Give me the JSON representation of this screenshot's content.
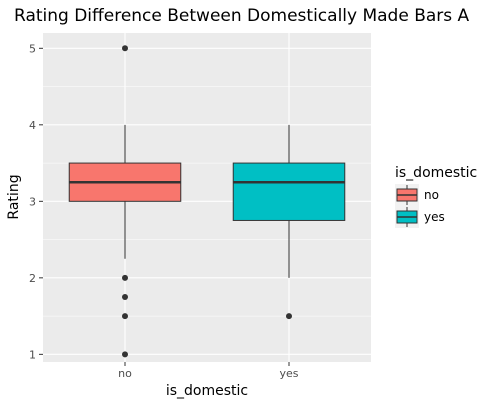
{
  "chart_data": {
    "type": "boxplot",
    "title": "Rating Difference Between Domestically Made Bars A",
    "xlabel": "is_domestic",
    "ylabel": "Rating",
    "categories": [
      "no",
      "yes"
    ],
    "ylim": [
      0.9,
      5.2
    ],
    "yticks": [
      "1",
      "2",
      "3",
      "4",
      "5"
    ],
    "grid": true,
    "legend": {
      "title": "is_domestic",
      "position": "right",
      "entries": [
        {
          "label": "no",
          "color": "#F8766D"
        },
        {
          "label": "yes",
          "color": "#00BFC4"
        }
      ]
    },
    "boxes": [
      {
        "category": "no",
        "whisker_low": 2.25,
        "q1": 3.0,
        "median": 3.25,
        "q3": 3.5,
        "whisker_high": 4.0,
        "outliers": [
          5.0,
          2.0,
          1.75,
          1.5,
          1.0
        ],
        "color": "#F8766D"
      },
      {
        "category": "yes",
        "whisker_low": 2.0,
        "q1": 2.75,
        "median": 3.25,
        "q3": 3.5,
        "whisker_high": 4.0,
        "outliers": [
          1.5
        ],
        "color": "#00BFC4"
      }
    ]
  },
  "colors": {
    "panel_background": "#EBEBEB",
    "grid_major": "#FFFFFF",
    "box_outline": "#333333"
  }
}
